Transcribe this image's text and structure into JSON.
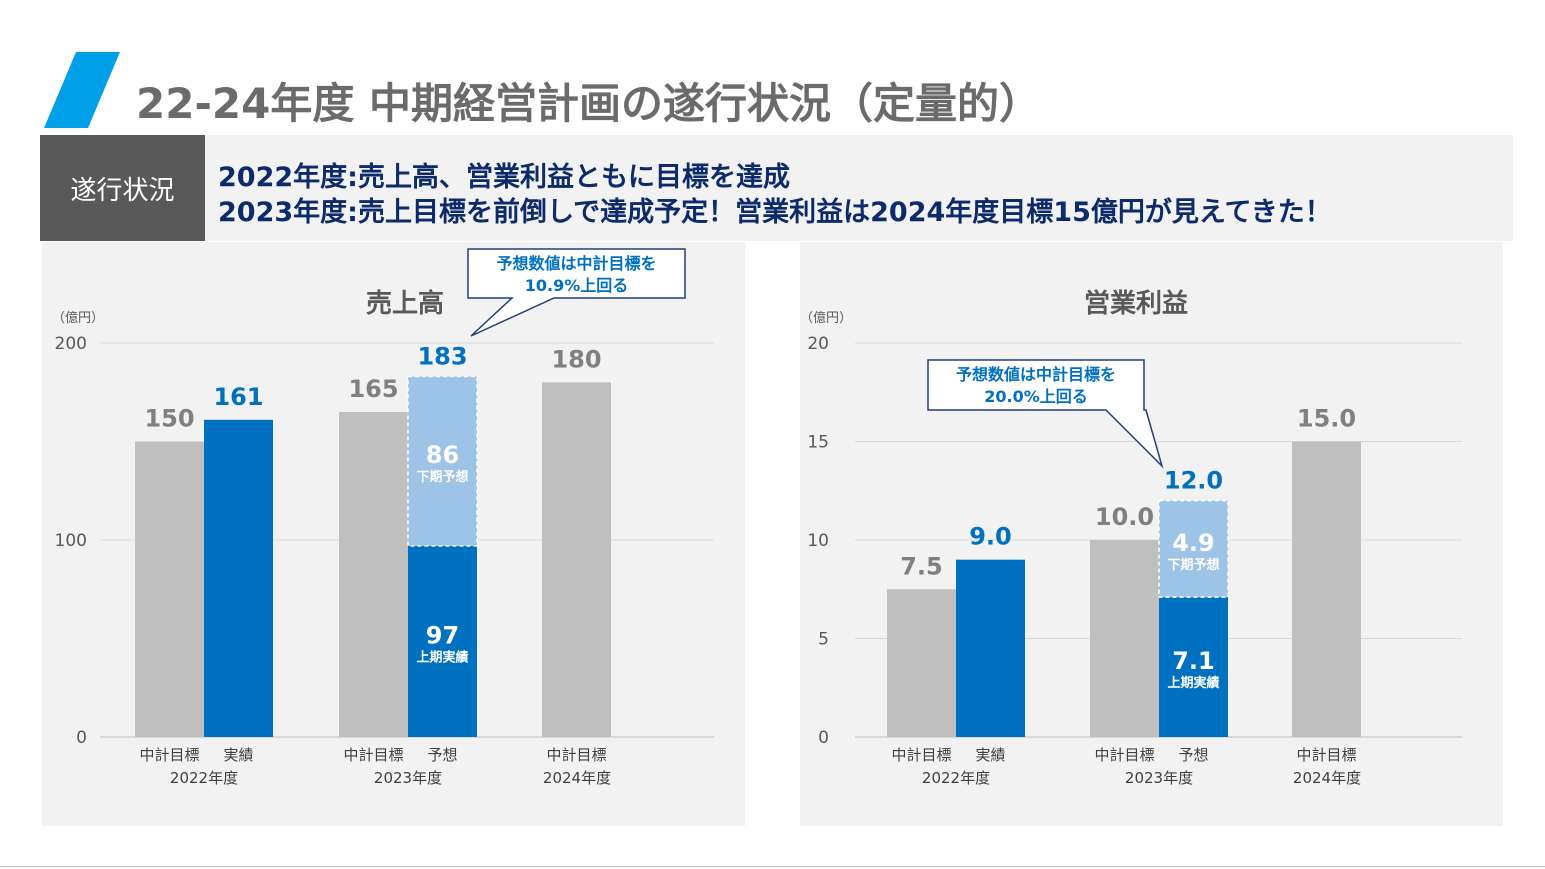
{
  "page": {
    "title": "22-24年度 中期経営計画の遂行状況（定量的）",
    "accent_color": "#00a0e9"
  },
  "status": {
    "label": "遂行状況",
    "line1": "2022年度:売上高、営業利益ともに目標を達成",
    "line2": "2023年度:売上目標を前倒しで達成予定！営業利益は2024年度目標15億円が見えてきた！"
  },
  "chart_data": [
    {
      "type": "bar",
      "title": "売上高",
      "unit_label": "（億円）",
      "ylim": [
        0,
        200
      ],
      "yticks": [
        0,
        100,
        200
      ],
      "grid": true,
      "colors": {
        "target": "#bfbfbf",
        "actual": "#0070c0",
        "forecast": "#9dc3e6"
      },
      "groups": [
        {
          "label": "2022年度",
          "bars": [
            {
              "category": "中計目標",
              "kind": "target",
              "value": 150,
              "label": "150"
            },
            {
              "category": "実績",
              "kind": "actual",
              "value": 161,
              "label": "161"
            }
          ]
        },
        {
          "label": "2023年度",
          "bars": [
            {
              "category": "中計目標",
              "kind": "target",
              "value": 165,
              "label": "165"
            },
            {
              "category": "予想",
              "kind": "stacked",
              "value": 183,
              "label": "183",
              "segments": [
                {
                  "name": "上期実績",
                  "value": 97,
                  "label": "97",
                  "kind": "actual"
                },
                {
                  "name": "下期予想",
                  "value": 86,
                  "label": "86",
                  "kind": "forecast"
                }
              ]
            }
          ]
        },
        {
          "label": "2024年度",
          "bars": [
            {
              "category": "中計目標",
              "kind": "target",
              "value": 180,
              "label": "180"
            }
          ]
        }
      ],
      "callout": {
        "text_line1": "予想数値は中計目標を",
        "text_line2": "10.9%上回る",
        "points_to": "2023年度 予想"
      }
    },
    {
      "type": "bar",
      "title": "営業利益",
      "unit_label": "（億円）",
      "ylim": [
        0,
        20
      ],
      "yticks": [
        0,
        5,
        10,
        15,
        20
      ],
      "grid": true,
      "colors": {
        "target": "#bfbfbf",
        "actual": "#0070c0",
        "forecast": "#9dc3e6"
      },
      "groups": [
        {
          "label": "2022年度",
          "bars": [
            {
              "category": "中計目標",
              "kind": "target",
              "value": 7.5,
              "label": "7.5"
            },
            {
              "category": "実績",
              "kind": "actual",
              "value": 9.0,
              "label": "9.0"
            }
          ]
        },
        {
          "label": "2023年度",
          "bars": [
            {
              "category": "中計目標",
              "kind": "target",
              "value": 10.0,
              "label": "10.0"
            },
            {
              "category": "予想",
              "kind": "stacked",
              "value": 12.0,
              "label": "12.0",
              "segments": [
                {
                  "name": "上期実績",
                  "value": 7.1,
                  "label": "7.1",
                  "kind": "actual"
                },
                {
                  "name": "下期予想",
                  "value": 4.9,
                  "label": "4.9",
                  "kind": "forecast"
                }
              ]
            }
          ]
        },
        {
          "label": "2024年度",
          "bars": [
            {
              "category": "中計目標",
              "kind": "target",
              "value": 15.0,
              "label": "15.0"
            }
          ]
        }
      ],
      "callout": {
        "text_line1": "予想数値は中計目標を",
        "text_line2": "20.0%上回る",
        "points_to": "2023年度 予想"
      }
    }
  ]
}
